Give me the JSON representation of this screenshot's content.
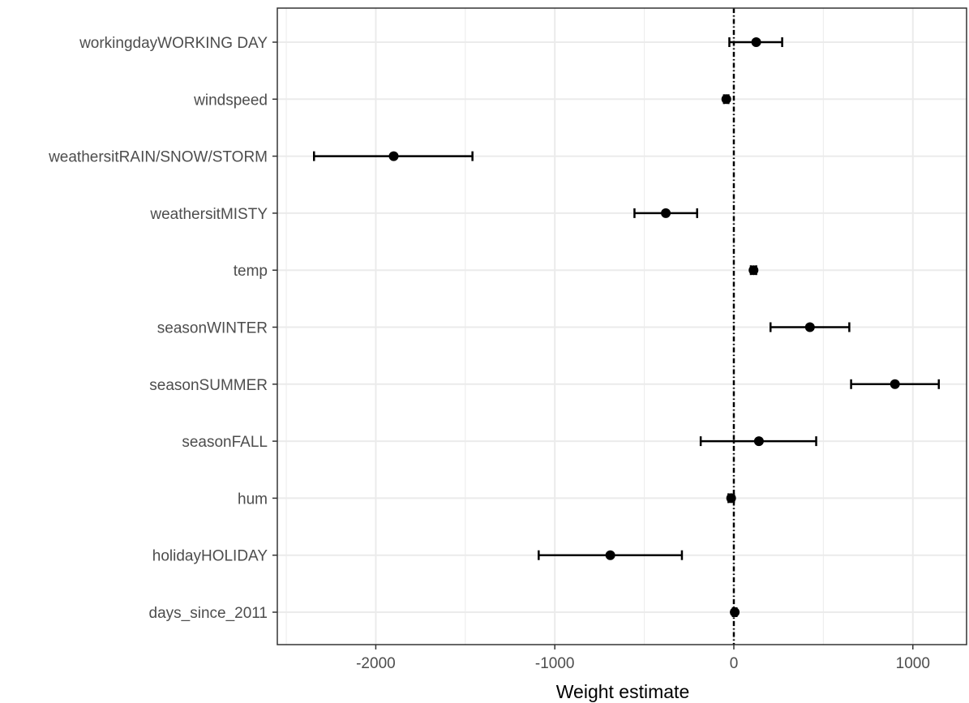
{
  "chart_data": {
    "type": "scatter",
    "subtype": "coefficient-plot-with-error-bars",
    "title": "",
    "xlabel": "Weight estimate",
    "ylabel": "",
    "xlim": [
      -2550,
      1300
    ],
    "x_ticks": [
      -2000,
      -1000,
      0,
      1000
    ],
    "x_tick_labels": [
      "-2000",
      "-1000",
      "0",
      "1000"
    ],
    "reference_line": {
      "x": 0,
      "style": "dotdash",
      "color": "#000000"
    },
    "grid": true,
    "legend": "none",
    "colors": {
      "points": "#000000",
      "grid": "#ebebeb",
      "panel_border": "#333333",
      "tick_label": "#4d4d4d"
    },
    "categories": [
      "workingdayWORKING DAY",
      "windspeed",
      "weathersitRAIN/SNOW/STORM",
      "weathersitMISTY",
      "temp",
      "seasonWINTER",
      "seasonSUMMER",
      "seasonFALL",
      "hum",
      "holidayHOLIDAY",
      "days_since_2011"
    ],
    "points": [
      {
        "label": "workingdayWORKING DAY",
        "estimate": 125,
        "lower": -25,
        "upper": 270
      },
      {
        "label": "windspeed",
        "estimate": -42,
        "lower": -55,
        "upper": -30
      },
      {
        "label": "weathersitRAIN/SNOW/STORM",
        "estimate": -1900,
        "lower": -2345,
        "upper": -1460
      },
      {
        "label": "weathersitMISTY",
        "estimate": -380,
        "lower": -555,
        "upper": -205
      },
      {
        "label": "temp",
        "estimate": 110,
        "lower": 95,
        "upper": 125
      },
      {
        "label": "seasonWINTER",
        "estimate": 425,
        "lower": 205,
        "upper": 645
      },
      {
        "label": "seasonSUMMER",
        "estimate": 900,
        "lower": 655,
        "upper": 1145
      },
      {
        "label": "seasonFALL",
        "estimate": 140,
        "lower": -185,
        "upper": 460
      },
      {
        "label": "hum",
        "estimate": -15,
        "lower": -30,
        "upper": 0
      },
      {
        "label": "holidayHOLIDAY",
        "estimate": -690,
        "lower": -1090,
        "upper": -290
      },
      {
        "label": "days_since_2011",
        "estimate": 5,
        "lower": -5,
        "upper": 15
      }
    ]
  }
}
